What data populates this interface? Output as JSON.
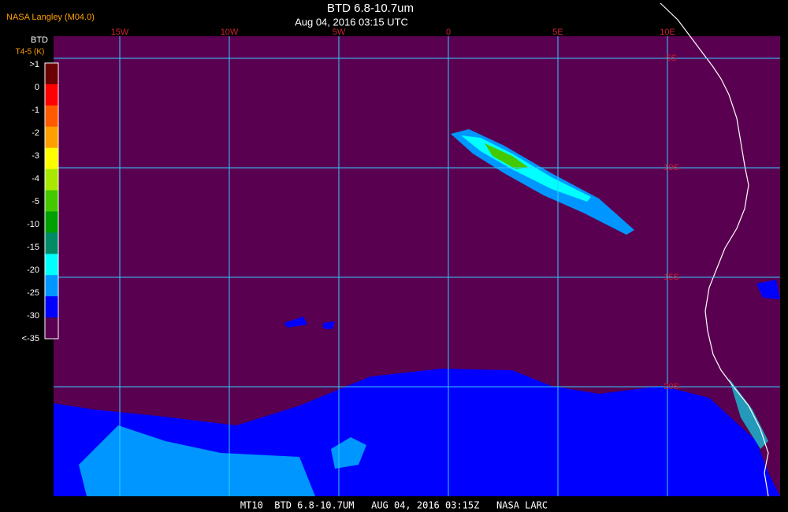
{
  "header": {
    "source": "NASA Langley (M04.0)",
    "title": "BTD 6.8-10.7um",
    "subtitle": "Aug 04, 2016 03:15 UTC"
  },
  "colorbar": {
    "title": "BTD",
    "unit": "T4-5 (K)",
    "entries": [
      {
        "label": ">1",
        "color": "#6b0000"
      },
      {
        "label": "0",
        "color": "#ff0000"
      },
      {
        "label": "-1",
        "color": "#ff5a00"
      },
      {
        "label": "-2",
        "color": "#ffa000"
      },
      {
        "label": "-3",
        "color": "#ffff00"
      },
      {
        "label": "-4",
        "color": "#a8e800"
      },
      {
        "label": "-5",
        "color": "#44c800"
      },
      {
        "label": "-10",
        "color": "#00a000"
      },
      {
        "label": "-15",
        "color": "#008a66"
      },
      {
        "label": "-20",
        "color": "#00ffff"
      },
      {
        "label": "-25",
        "color": "#0096ff"
      },
      {
        "label": "-30",
        "color": "#0000ff"
      },
      {
        "label": "<-35",
        "color": "#5a0050"
      }
    ]
  },
  "longitudes": [
    "15W",
    "10W",
    "5W",
    "0",
    "5E",
    "10E"
  ],
  "latitudes": [
    "5S",
    "10S",
    "15S",
    "20S"
  ],
  "footer": "MT10  BTD 6.8-10.7UM   AUG 04, 2016 03:15Z   NASA LARC"
}
